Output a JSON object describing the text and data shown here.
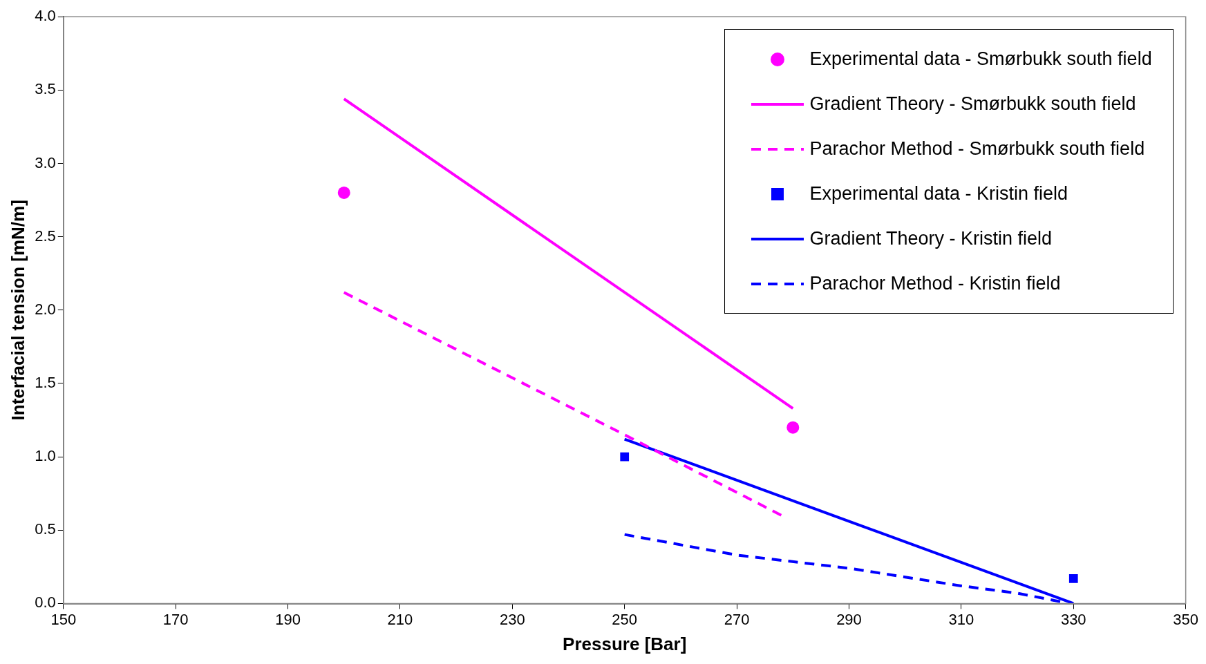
{
  "chart_data": {
    "type": "line",
    "xlabel": "Pressure [Bar]",
    "ylabel": "Interfacial tension [mN/m]",
    "xlim": [
      150,
      350
    ],
    "xticks": [
      150,
      170,
      190,
      210,
      230,
      250,
      270,
      290,
      310,
      330,
      350
    ],
    "ylim": [
      0,
      4
    ],
    "yticks": [
      {
        "value": 0,
        "label": "0.0"
      },
      {
        "value": 0.5,
        "label": "0.5"
      },
      {
        "value": 1,
        "label": "1.0"
      },
      {
        "value": 1.5,
        "label": "1.5"
      },
      {
        "value": 2,
        "label": "2.0"
      },
      {
        "value": 2.5,
        "label": "2.5"
      },
      {
        "value": 3,
        "label": "3.0"
      },
      {
        "value": 3.5,
        "label": "3.5"
      },
      {
        "value": 4,
        "label": "4.0"
      }
    ],
    "grid": false,
    "legend": "top right",
    "series": [
      {
        "name": "Experimental data - Smørbukk south field",
        "type": "scatter",
        "marker": "circle",
        "color": "#ff00ff",
        "x": [
          200,
          280
        ],
        "values": [
          2.8,
          1.2
        ]
      },
      {
        "name": "Gradient Theory - Smørbukk south field",
        "line_style": "solid",
        "marker": "none",
        "color": "#ff00ff",
        "x": [
          200,
          280
        ],
        "values": [
          3.44,
          1.33
        ]
      },
      {
        "name": "Parachor Method - Smørbukk south field",
        "line_style": "dashed",
        "marker": "none",
        "color": "#ff00ff",
        "x": [
          200,
          250,
          278
        ],
        "values": [
          2.12,
          1.15,
          0.6
        ]
      },
      {
        "name": "Experimental data - Kristin field",
        "type": "scatter",
        "marker": "square",
        "color": "#0000ff",
        "x": [
          250,
          330
        ],
        "values": [
          1.0,
          0.17
        ]
      },
      {
        "name": "Gradient Theory - Kristin field",
        "line_style": "solid",
        "marker": "none",
        "color": "#0000ff",
        "x": [
          250,
          330
        ],
        "values": [
          1.12,
          0.0
        ]
      },
      {
        "name": "Parachor Method - Kristin field",
        "line_style": "dashed",
        "marker": "none",
        "color": "#0000ff",
        "x": [
          250,
          270,
          290,
          300,
          310,
          320,
          328
        ],
        "values": [
          0.47,
          0.33,
          0.24,
          0.18,
          0.12,
          0.07,
          0.01
        ]
      }
    ]
  }
}
